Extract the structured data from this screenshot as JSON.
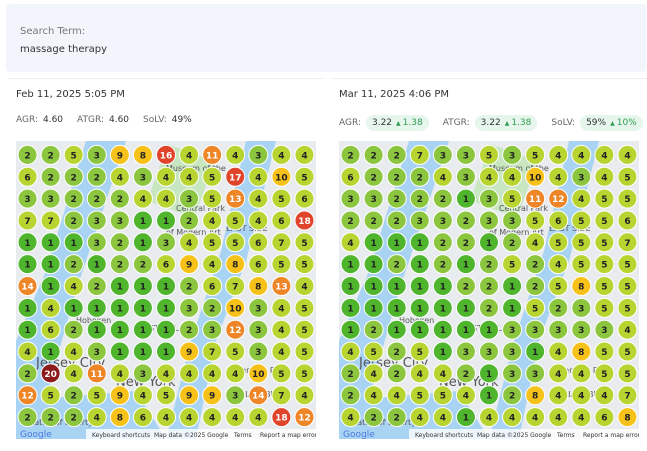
{
  "search": {
    "label": "Search Term:",
    "term": "massage therapy"
  },
  "panels": [
    {
      "date": "Feb 11, 2025 5:05 PM",
      "metrics": [
        {
          "label": "AGR:",
          "value": "4.60"
        },
        {
          "label": "ATGR:",
          "value": "4.60"
        },
        {
          "label": "SoLV:",
          "value": "49%"
        }
      ],
      "grid": [
        [
          2,
          2,
          5,
          3,
          9,
          8,
          16,
          4,
          11,
          4,
          3,
          4,
          4
        ],
        [
          6,
          2,
          2,
          2,
          4,
          3,
          4,
          4,
          5,
          17,
          4,
          10,
          5
        ],
        [
          3,
          3,
          2,
          2,
          2,
          4,
          4,
          3,
          5,
          13,
          4,
          5,
          6
        ],
        [
          7,
          7,
          2,
          3,
          3,
          1,
          1,
          2,
          4,
          5,
          4,
          6,
          18
        ],
        [
          1,
          1,
          1,
          3,
          2,
          1,
          3,
          4,
          5,
          5,
          6,
          7,
          5
        ],
        [
          1,
          1,
          2,
          1,
          2,
          2,
          6,
          9,
          4,
          8,
          6,
          5,
          5
        ],
        [
          14,
          1,
          4,
          2,
          1,
          1,
          1,
          2,
          6,
          7,
          8,
          13,
          4
        ],
        [
          1,
          4,
          1,
          1,
          1,
          1,
          1,
          3,
          2,
          10,
          3,
          4,
          5
        ],
        [
          1,
          6,
          2,
          1,
          1,
          1,
          1,
          2,
          3,
          12,
          3,
          4,
          5
        ],
        [
          4,
          1,
          4,
          3,
          1,
          1,
          1,
          9,
          7,
          5,
          3,
          4,
          5
        ],
        [
          2,
          20,
          4,
          11,
          4,
          3,
          4,
          4,
          4,
          4,
          10,
          5,
          5
        ],
        [
          12,
          5,
          2,
          5,
          9,
          4,
          5,
          9,
          9,
          3,
          14,
          7,
          4
        ],
        [
          2,
          2,
          2,
          4,
          8,
          6,
          4,
          4,
          4,
          4,
          4,
          18,
          12
        ]
      ],
      "map_labels": [
        "Museum of the",
        "Central Park",
        "of Modern Art",
        "EAST SIDE",
        "Hoboken",
        "WEST VILLAGE",
        "Jersey City",
        "New York",
        "WILLIAMSBURG",
        "Adventure Park",
        "Statue of Liberty"
      ],
      "footer": [
        "Google",
        "Keyboard shortcuts",
        "Map data ©2025 Google",
        "Terms",
        "Report a map error"
      ]
    },
    {
      "date": "Mar 11, 2025 4:06 PM",
      "metrics": [
        {
          "label": "AGR:",
          "value": "3.22",
          "change": "1.38"
        },
        {
          "label": "ATGR:",
          "value": "3.22",
          "change": "1.38"
        },
        {
          "label": "SoLV:",
          "value": "59%",
          "change": "10%"
        }
      ],
      "grid": [
        [
          2,
          2,
          2,
          7,
          3,
          3,
          5,
          3,
          5,
          4,
          4,
          4,
          4
        ],
        [
          6,
          2,
          2,
          2,
          4,
          3,
          4,
          4,
          10,
          4,
          3,
          4,
          5
        ],
        [
          3,
          3,
          2,
          2,
          2,
          1,
          3,
          5,
          11,
          12,
          4,
          5,
          5
        ],
        [
          2,
          2,
          2,
          3,
          3,
          2,
          3,
          3,
          5,
          6,
          5,
          5,
          6
        ],
        [
          4,
          1,
          1,
          1,
          2,
          2,
          1,
          2,
          4,
          5,
          5,
          5,
          7
        ],
        [
          1,
          1,
          2,
          1,
          2,
          1,
          2,
          5,
          2,
          4,
          5,
          5,
          5
        ],
        [
          1,
          1,
          1,
          1,
          1,
          2,
          2,
          1,
          2,
          5,
          8,
          5,
          5
        ],
        [
          1,
          1,
          1,
          1,
          1,
          1,
          2,
          1,
          5,
          2,
          3,
          5,
          5
        ],
        [
          1,
          2,
          1,
          1,
          1,
          1,
          1,
          3,
          3,
          3,
          3,
          3,
          4
        ],
        [
          4,
          5,
          2,
          5,
          1,
          3,
          3,
          3,
          1,
          4,
          8,
          5,
          5
        ],
        [
          2,
          4,
          2,
          4,
          4,
          2,
          1,
          3,
          3,
          4,
          4,
          5,
          5
        ],
        [
          2,
          4,
          4,
          5,
          5,
          4,
          1,
          2,
          8,
          4,
          4,
          4,
          7
        ],
        [
          4,
          2,
          2,
          4,
          4,
          1,
          4,
          4,
          4,
          4,
          4,
          6,
          8
        ]
      ],
      "map_labels": [
        "Museum of the",
        "Central Park",
        "of Modern Art",
        "EAST SIDE",
        "Hoboken",
        "WEST VILLAGE",
        "Jersey City",
        "New York",
        "WILLIAMSBURG",
        "Adventure Park",
        "Statue of Liberty"
      ],
      "footer": [
        "Google",
        "Keyboard shortcuts",
        "Map data ©2025 Google",
        "Terms",
        "Report a map error"
      ]
    }
  ]
}
